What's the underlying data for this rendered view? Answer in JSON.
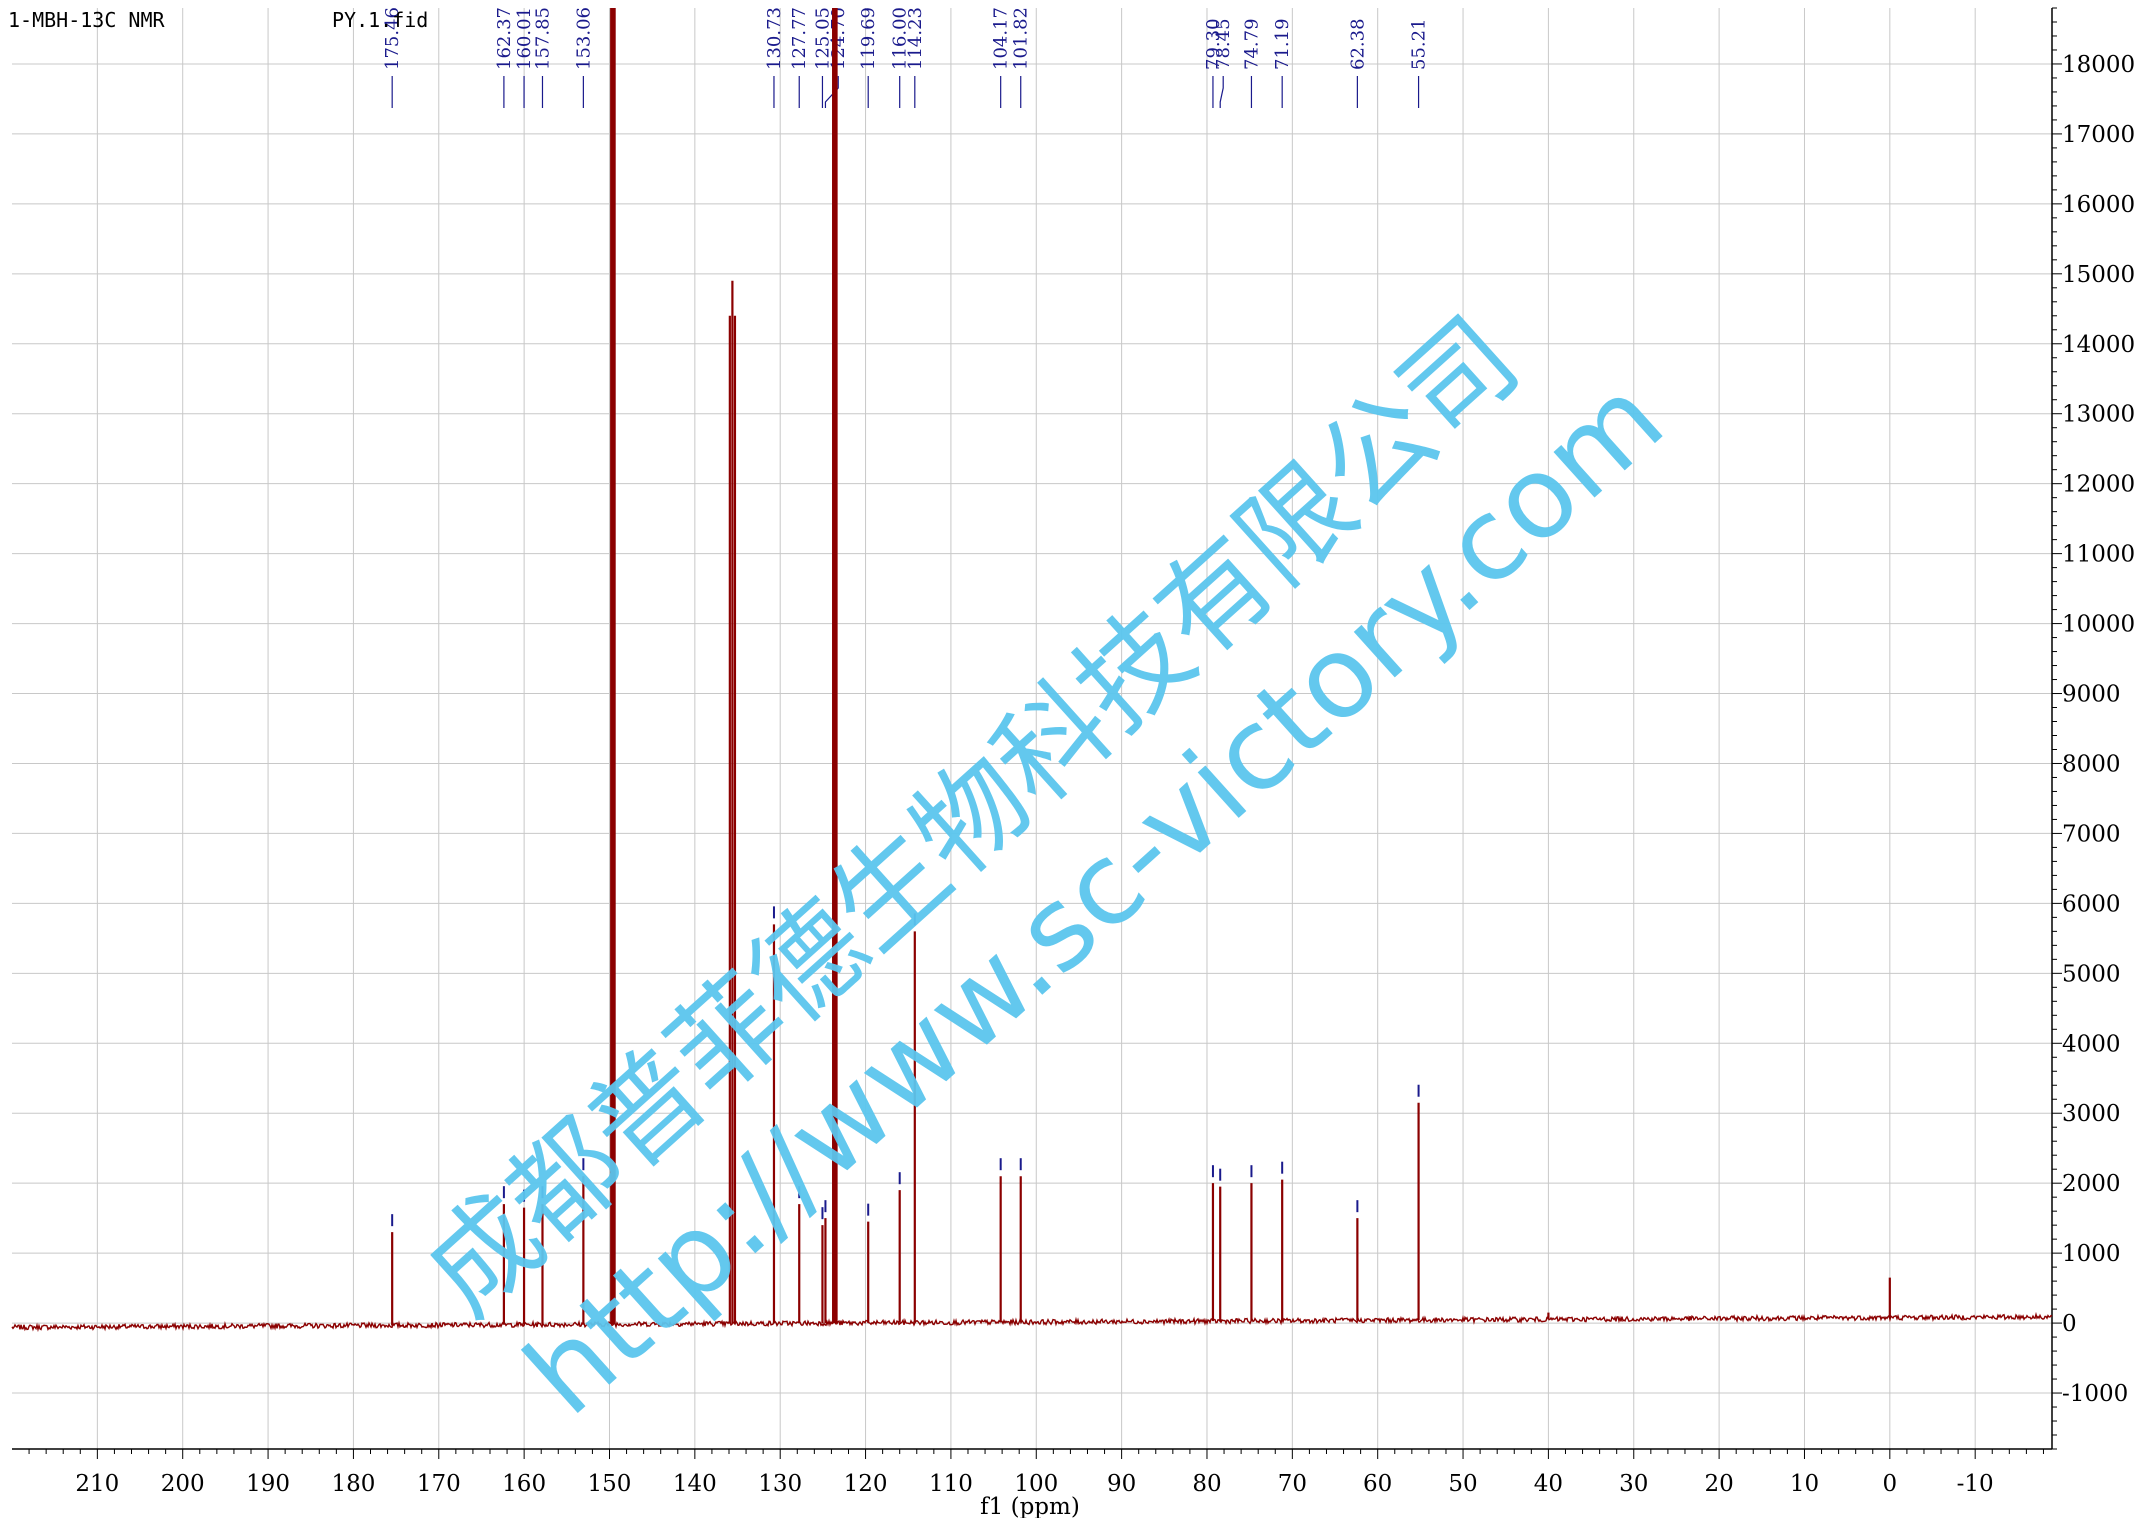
{
  "chart_data": {
    "type": "line",
    "experiment_label": "1-MBH-13C NMR",
    "file_label": "PY.1.fid",
    "xlabel": "f1 (ppm)",
    "ylabel": "",
    "x_reversed": true,
    "xlim": [
      220,
      -19
    ],
    "ylim": [
      -1800,
      18800
    ],
    "grid": true,
    "x_ticks": [
      210,
      200,
      190,
      180,
      170,
      160,
      150,
      140,
      130,
      120,
      110,
      100,
      90,
      80,
      70,
      60,
      50,
      40,
      30,
      20,
      10,
      0,
      -10
    ],
    "x_tick_labels": [
      "210",
      "200",
      "190",
      "180",
      "170",
      "160",
      "150",
      "140",
      "130",
      "120",
      "110",
      "100",
      "90",
      "80",
      "70",
      "60",
      "50",
      "40",
      "30",
      "20",
      "10",
      "0",
      "-10"
    ],
    "y_ticks": [
      -1000,
      0,
      1000,
      2000,
      3000,
      4000,
      5000,
      6000,
      7000,
      8000,
      9000,
      10000,
      11000,
      12000,
      13000,
      14000,
      15000,
      16000,
      17000,
      18000
    ],
    "y_tick_labels": [
      "-1000",
      "0",
      "1000",
      "2000",
      "3000",
      "4000",
      "5000",
      "6000",
      "7000",
      "8000",
      "9000",
      "10000",
      "11000",
      "12000",
      "13000",
      "14000",
      "15000",
      "16000",
      "17000",
      "18000"
    ],
    "baseline": {
      "x": [
        220,
        -19
      ],
      "y": [
        -60,
        90
      ]
    },
    "series": [
      {
        "name": "",
        "peaks": [
          {
            "ppm": 175.46,
            "height": 1300
          },
          {
            "ppm": 162.37,
            "height": 1700
          },
          {
            "ppm": 160.01,
            "height": 1650
          },
          {
            "ppm": 157.85,
            "height": 1700
          },
          {
            "ppm": 153.06,
            "height": 2100
          },
          {
            "ppm": 149.8,
            "height": 18800
          },
          {
            "ppm": 149.6,
            "height": 18800
          },
          {
            "ppm": 149.4,
            "height": 18800
          },
          {
            "ppm": 135.9,
            "height": 14400
          },
          {
            "ppm": 135.6,
            "height": 14900
          },
          {
            "ppm": 135.3,
            "height": 14400
          },
          {
            "ppm": 130.73,
            "height": 5700
          },
          {
            "ppm": 127.77,
            "height": 1700
          },
          {
            "ppm": 125.05,
            "height": 1400
          },
          {
            "ppm": 124.7,
            "height": 1500
          },
          {
            "ppm": 123.8,
            "height": 18800
          },
          {
            "ppm": 123.6,
            "height": 18800
          },
          {
            "ppm": 123.4,
            "height": 18800
          },
          {
            "ppm": 119.69,
            "height": 1450
          },
          {
            "ppm": 116.0,
            "height": 1900
          },
          {
            "ppm": 114.23,
            "height": 5600
          },
          {
            "ppm": 104.17,
            "height": 2100
          },
          {
            "ppm": 101.82,
            "height": 2100
          },
          {
            "ppm": 79.3,
            "height": 2000
          },
          {
            "ppm": 78.45,
            "height": 1950
          },
          {
            "ppm": 74.79,
            "height": 2000
          },
          {
            "ppm": 71.19,
            "height": 2050
          },
          {
            "ppm": 62.38,
            "height": 1500
          },
          {
            "ppm": 55.21,
            "height": 3150
          },
          {
            "ppm": 40.0,
            "height": 150
          },
          {
            "ppm": 0.0,
            "height": 650
          }
        ]
      }
    ],
    "peak_labels": [
      "175.46",
      "162.37",
      "160.01",
      "157.85",
      "153.06",
      "130.73",
      "127.77",
      "125.05",
      "124.70",
      "119.69",
      "116.00",
      "114.23",
      "104.17",
      "101.82",
      "79.30",
      "78.45",
      "74.79",
      "71.19",
      "62.38",
      "55.21"
    ],
    "colors": {
      "spectrum": "#8b0000",
      "peak_label": "#1a1a8c",
      "grid": "#c8c8c8",
      "watermark": "#5bc6ee"
    }
  },
  "watermark": {
    "line1": "成都普菲德生物科技有限公司",
    "line2": "http://www.sc-victory.com"
  }
}
